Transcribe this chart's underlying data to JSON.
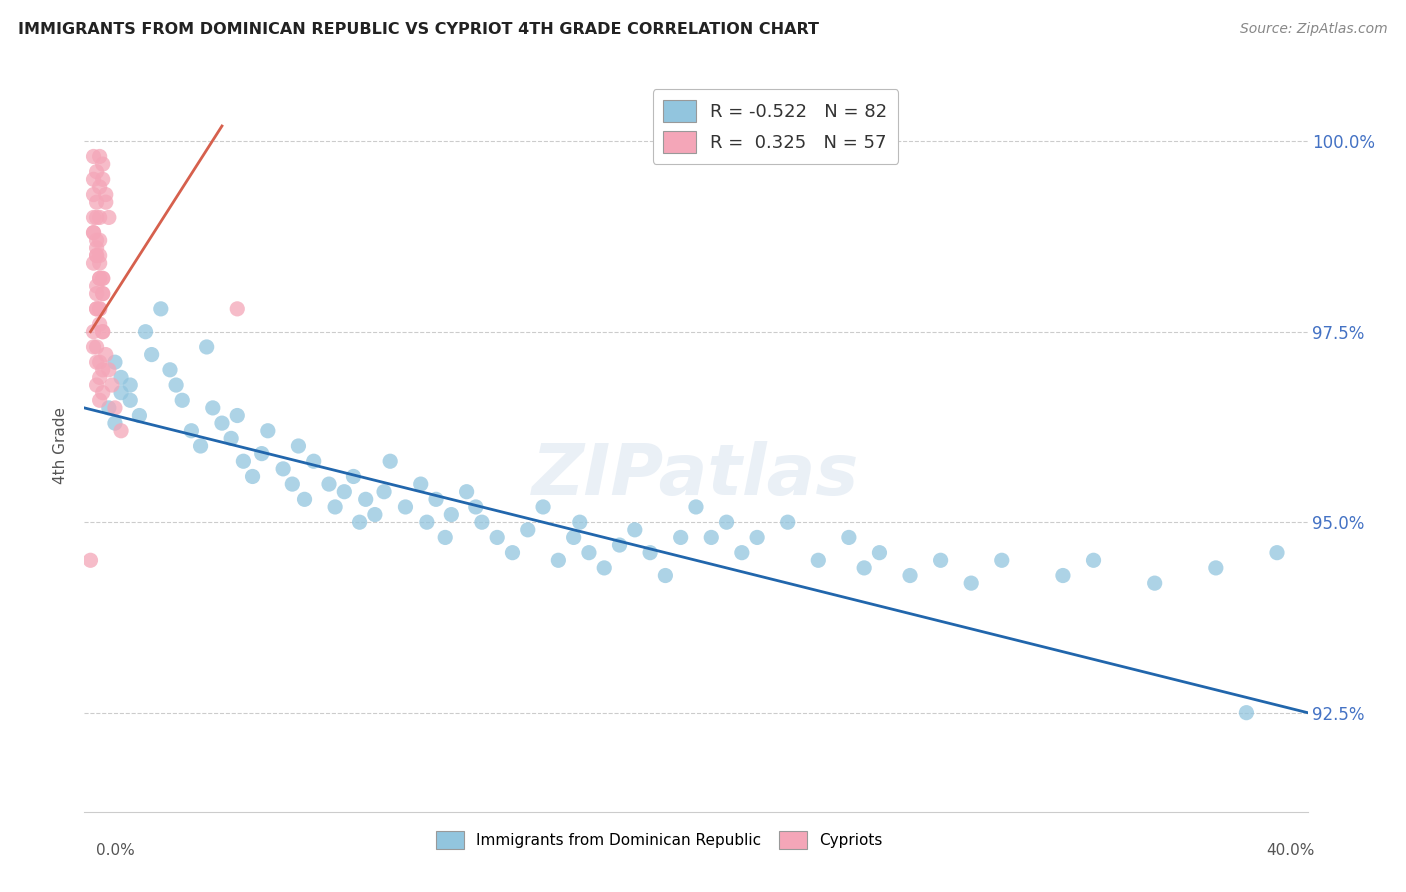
{
  "title": "IMMIGRANTS FROM DOMINICAN REPUBLIC VS CYPRIOT 4TH GRADE CORRELATION CHART",
  "source": "Source: ZipAtlas.com",
  "ylabel": "4th Grade",
  "yticks": [
    92.5,
    95.0,
    97.5,
    100.0
  ],
  "ytick_labels": [
    "92.5%",
    "95.0%",
    "97.5%",
    "100.0%"
  ],
  "xmin": 0.0,
  "xmax": 0.4,
  "ymin": 91.2,
  "ymax": 100.8,
  "blue_R": -0.522,
  "blue_N": 82,
  "pink_R": 0.325,
  "pink_N": 57,
  "blue_color": "#92c5de",
  "blue_line_color": "#2166ac",
  "pink_color": "#f4a6b8",
  "pink_line_color": "#d6604d",
  "legend_label_blue": "Immigrants from Dominican Republic",
  "legend_label_pink": "Cypriots",
  "watermark": "ZIPatlas",
  "blue_line_x": [
    0.0,
    0.4
  ],
  "blue_line_y": [
    96.5,
    92.5
  ],
  "pink_line_x": [
    0.002,
    0.045
  ],
  "pink_line_y": [
    97.5,
    100.2
  ],
  "blue_scatter_x": [
    0.008,
    0.01,
    0.012,
    0.015,
    0.018,
    0.01,
    0.012,
    0.015,
    0.02,
    0.025,
    0.022,
    0.028,
    0.03,
    0.032,
    0.035,
    0.038,
    0.04,
    0.042,
    0.045,
    0.048,
    0.05,
    0.052,
    0.055,
    0.058,
    0.06,
    0.065,
    0.068,
    0.07,
    0.072,
    0.075,
    0.08,
    0.082,
    0.085,
    0.088,
    0.09,
    0.092,
    0.095,
    0.098,
    0.1,
    0.105,
    0.11,
    0.112,
    0.115,
    0.118,
    0.12,
    0.125,
    0.128,
    0.13,
    0.135,
    0.14,
    0.145,
    0.15,
    0.155,
    0.16,
    0.162,
    0.165,
    0.17,
    0.175,
    0.18,
    0.185,
    0.19,
    0.195,
    0.2,
    0.205,
    0.21,
    0.215,
    0.22,
    0.23,
    0.24,
    0.25,
    0.255,
    0.26,
    0.27,
    0.28,
    0.29,
    0.3,
    0.32,
    0.33,
    0.35,
    0.37,
    0.38,
    0.39
  ],
  "blue_scatter_y": [
    96.5,
    96.3,
    96.7,
    96.8,
    96.4,
    97.1,
    96.9,
    96.6,
    97.5,
    97.8,
    97.2,
    97.0,
    96.8,
    96.6,
    96.2,
    96.0,
    97.3,
    96.5,
    96.3,
    96.1,
    96.4,
    95.8,
    95.6,
    95.9,
    96.2,
    95.7,
    95.5,
    96.0,
    95.3,
    95.8,
    95.5,
    95.2,
    95.4,
    95.6,
    95.0,
    95.3,
    95.1,
    95.4,
    95.8,
    95.2,
    95.5,
    95.0,
    95.3,
    94.8,
    95.1,
    95.4,
    95.2,
    95.0,
    94.8,
    94.6,
    94.9,
    95.2,
    94.5,
    94.8,
    95.0,
    94.6,
    94.4,
    94.7,
    94.9,
    94.6,
    94.3,
    94.8,
    95.2,
    94.8,
    95.0,
    94.6,
    94.8,
    95.0,
    94.5,
    94.8,
    94.4,
    94.6,
    94.3,
    94.5,
    94.2,
    94.5,
    94.3,
    94.5,
    94.2,
    94.4,
    92.5,
    94.6
  ],
  "pink_scatter_x": [
    0.003,
    0.004,
    0.005,
    0.006,
    0.007,
    0.003,
    0.004,
    0.005,
    0.005,
    0.006,
    0.007,
    0.008,
    0.003,
    0.004,
    0.005,
    0.006,
    0.004,
    0.005,
    0.006,
    0.004,
    0.005,
    0.003,
    0.004,
    0.005,
    0.006,
    0.004,
    0.005,
    0.003,
    0.004,
    0.005,
    0.006,
    0.004,
    0.003,
    0.004,
    0.005,
    0.006,
    0.004,
    0.005,
    0.006,
    0.003,
    0.004,
    0.005,
    0.006,
    0.003,
    0.004,
    0.005,
    0.003,
    0.004,
    0.005,
    0.006,
    0.007,
    0.008,
    0.009,
    0.01,
    0.012,
    0.05,
    0.002
  ],
  "pink_scatter_y": [
    99.8,
    99.6,
    99.4,
    99.7,
    99.3,
    99.5,
    99.2,
    99.0,
    99.8,
    99.5,
    99.2,
    99.0,
    98.8,
    98.6,
    98.4,
    98.2,
    98.5,
    98.2,
    98.0,
    97.8,
    97.6,
    97.5,
    97.3,
    97.1,
    97.0,
    96.8,
    96.6,
    98.8,
    98.5,
    98.2,
    98.0,
    97.8,
    99.0,
    98.7,
    98.5,
    98.2,
    98.0,
    97.8,
    97.5,
    97.3,
    97.1,
    96.9,
    96.7,
    99.3,
    99.0,
    98.7,
    98.4,
    98.1,
    97.8,
    97.5,
    97.2,
    97.0,
    96.8,
    96.5,
    96.2,
    97.8,
    94.5
  ]
}
